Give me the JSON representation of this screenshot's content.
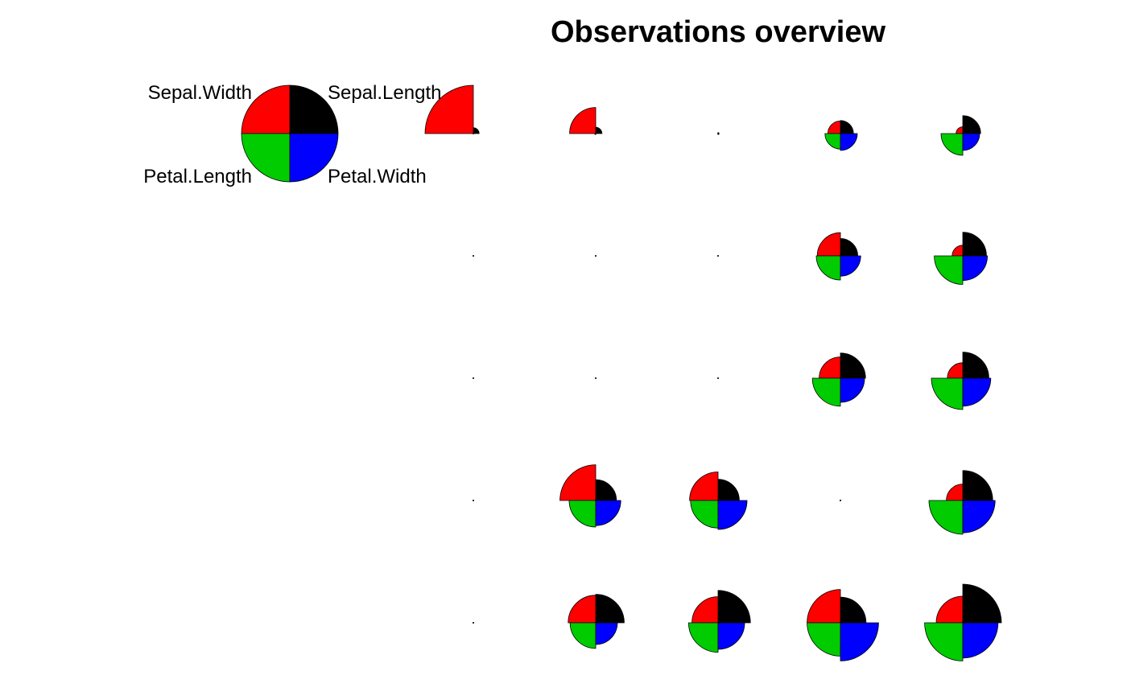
{
  "chart_data": {
    "type": "segment-star",
    "title": "Observations overview",
    "variables": [
      "Sepal.Length",
      "Sepal.Width",
      "Petal.Length",
      "Petal.Width"
    ],
    "colors": [
      "#000000",
      "#ff0000",
      "#00cc00",
      "#0000ff"
    ],
    "scale": "each variable rescaled to [0, 1]",
    "grid": {
      "rows": 5,
      "cols": 5
    },
    "observations": [
      {
        "row": 0,
        "col": 0,
        "values": [
          0.12,
          1.0,
          0.01,
          0.0
        ]
      },
      {
        "row": 0,
        "col": 1,
        "values": [
          0.13,
          0.54,
          0.02,
          0.0
        ]
      },
      {
        "row": 0,
        "col": 2,
        "values": [
          0.02,
          0.01,
          0.01,
          0.02
        ]
      },
      {
        "row": 0,
        "col": 3,
        "values": [
          0.27,
          0.26,
          0.32,
          0.35
        ]
      },
      {
        "row": 0,
        "col": 4,
        "values": [
          0.37,
          0.14,
          0.45,
          0.35
        ]
      },
      {
        "row": 1,
        "col": 0,
        "values": [
          0.0,
          0.0,
          0.0,
          0.0
        ]
      },
      {
        "row": 1,
        "col": 1,
        "values": [
          0.0,
          0.0,
          0.0,
          0.0
        ]
      },
      {
        "row": 1,
        "col": 2,
        "values": [
          0.0,
          0.0,
          0.0,
          0.0
        ]
      },
      {
        "row": 1,
        "col": 3,
        "values": [
          0.36,
          0.48,
          0.5,
          0.42
        ]
      },
      {
        "row": 1,
        "col": 4,
        "values": [
          0.49,
          0.22,
          0.59,
          0.51
        ]
      },
      {
        "row": 2,
        "col": 0,
        "values": [
          0.0,
          0.0,
          0.0,
          0.0
        ]
      },
      {
        "row": 2,
        "col": 1,
        "values": [
          0.0,
          0.0,
          0.0,
          0.0
        ]
      },
      {
        "row": 2,
        "col": 2,
        "values": [
          0.0,
          0.0,
          0.0,
          0.0
        ]
      },
      {
        "row": 2,
        "col": 3,
        "values": [
          0.52,
          0.44,
          0.58,
          0.5
        ]
      },
      {
        "row": 2,
        "col": 4,
        "values": [
          0.54,
          0.32,
          0.65,
          0.58
        ]
      },
      {
        "row": 3,
        "col": 0,
        "values": [
          0.0,
          0.0,
          0.0,
          0.0
        ]
      },
      {
        "row": 3,
        "col": 1,
        "values": [
          0.43,
          0.74,
          0.55,
          0.52
        ]
      },
      {
        "row": 3,
        "col": 2,
        "values": [
          0.44,
          0.59,
          0.57,
          0.6
        ]
      },
      {
        "row": 3,
        "col": 3,
        "values": [
          0.0,
          0.0,
          0.0,
          0.0
        ]
      },
      {
        "row": 3,
        "col": 4,
        "values": [
          0.62,
          0.34,
          0.7,
          0.67
        ]
      },
      {
        "row": 4,
        "col": 0,
        "values": [
          0.0,
          0.0,
          0.0,
          0.0
        ]
      },
      {
        "row": 4,
        "col": 1,
        "values": [
          0.59,
          0.57,
          0.53,
          0.45
        ]
      },
      {
        "row": 4,
        "col": 2,
        "values": [
          0.67,
          0.54,
          0.61,
          0.55
        ]
      },
      {
        "row": 4,
        "col": 3,
        "values": [
          0.53,
          0.69,
          0.69,
          0.79
        ]
      },
      {
        "row": 4,
        "col": 4,
        "values": [
          0.8,
          0.55,
          0.79,
          0.73
        ]
      }
    ]
  }
}
